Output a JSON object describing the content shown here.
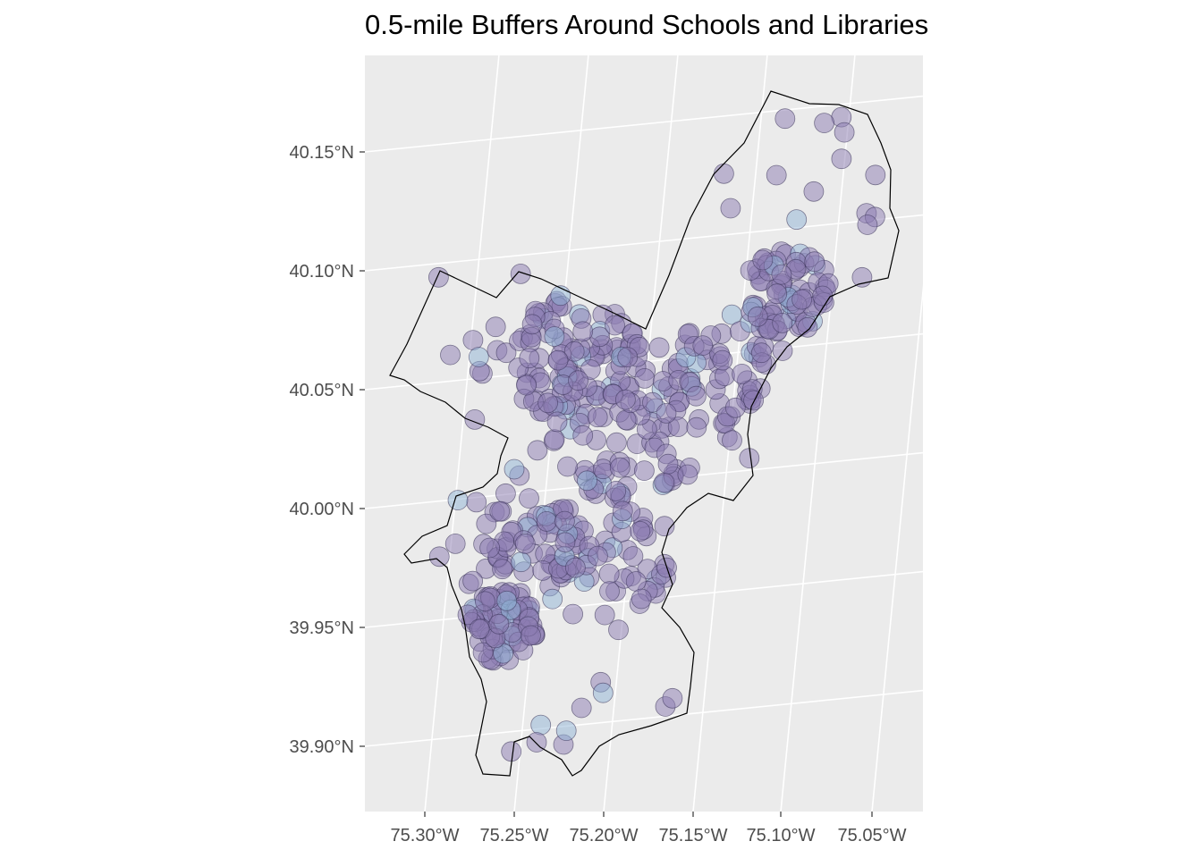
{
  "title": "0.5-mile Buffers Around Schools and Libraries",
  "colors": {
    "panel_bg": "#ebebeb",
    "grid": "#ffffff",
    "boundary": "#000000",
    "buffer_purple": "#8b7bb2",
    "buffer_blue": "#8fb4d6",
    "buffer_stroke": "#3b3458"
  },
  "axes": {
    "x_ticks": [
      "75.30°W",
      "75.25°W",
      "75.20°W",
      "75.15°W",
      "75.10°W",
      "75.05°W"
    ],
    "y_ticks": [
      "40.15°N",
      "40.10°N",
      "40.05°N",
      "40.00°N",
      "39.95°N",
      "39.90°N"
    ],
    "x_range_deg": [
      -75.325,
      -75.015
    ],
    "y_range_deg": [
      39.876,
      40.18
    ]
  },
  "chart_data": {
    "type": "map",
    "title": "0.5-mile Buffers Around Schools and Libraries",
    "layers": [
      "city boundary",
      "0.5-mile buffers (schools)",
      "0.5-mile buffers (libraries)"
    ],
    "approx_buffer_count": 560
  }
}
